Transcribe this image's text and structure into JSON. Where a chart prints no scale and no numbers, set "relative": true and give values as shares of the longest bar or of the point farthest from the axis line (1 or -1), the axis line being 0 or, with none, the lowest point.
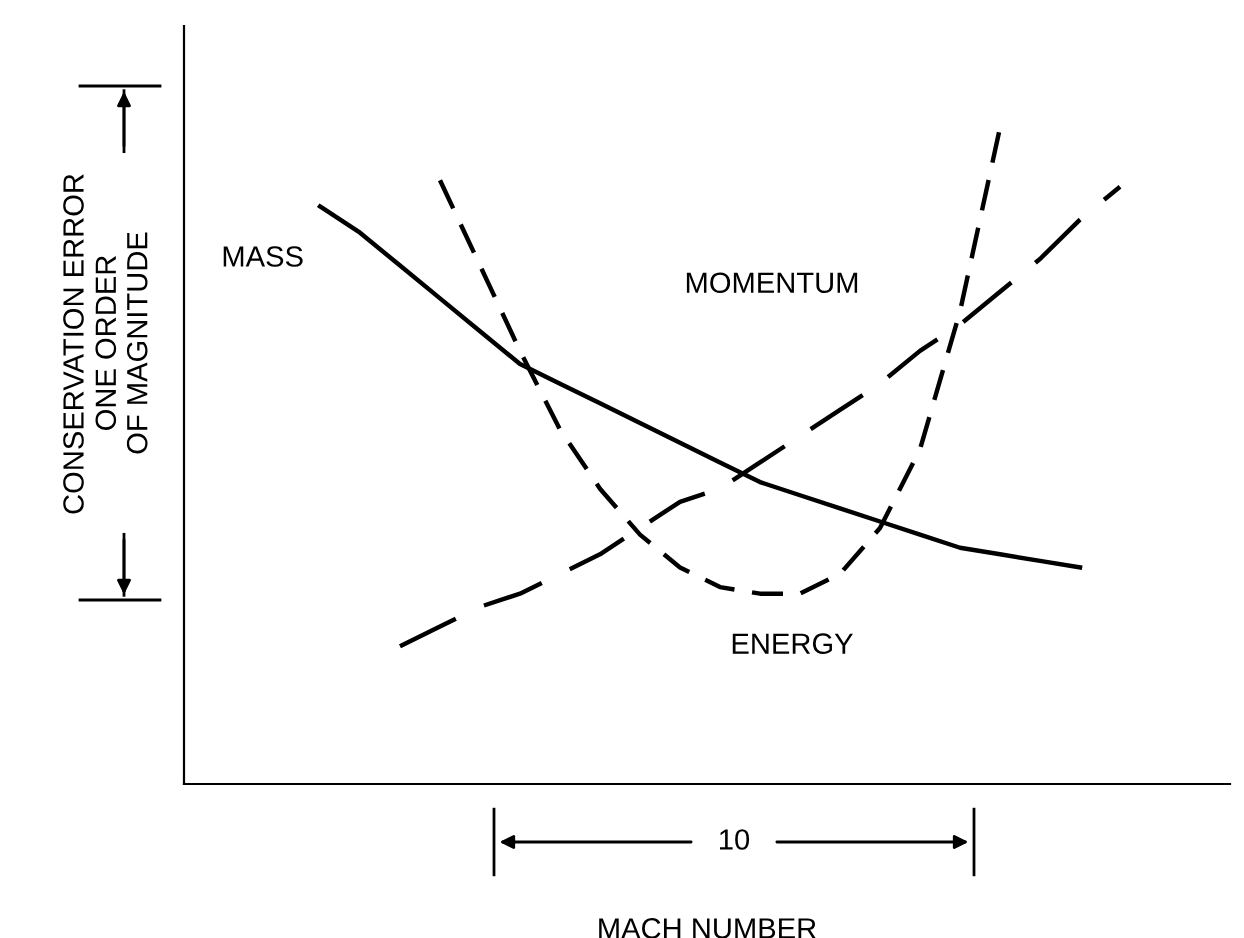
{
  "chart_data": {
    "type": "line",
    "relative": true,
    "tick_labels": false,
    "legend": false,
    "marker": "none",
    "xlabel": "MACH NUMBER",
    "annotations": [
      "CONSERVATION ERROR",
      "ONE ORDER\nOF MAGNITUDE",
      "10"
    ],
    "categories": [
      null,
      null,
      null,
      null,
      null,
      null,
      null,
      null,
      null,
      null,
      null,
      null,
      null,
      null,
      null,
      null,
      null,
      null,
      null,
      null,
      null,
      null
    ],
    "series": [
      {
        "name": "MASS",
        "color": "#000000",
        "line_style": "solid",
        "values": [
          0.88,
          0.84,
          0.79,
          0.74,
          0.69,
          0.64,
          0.61,
          0.58,
          0.55,
          0.52,
          0.49,
          0.46,
          0.44,
          0.42,
          0.4,
          0.38,
          0.36,
          0.35,
          0.34,
          0.33,
          null,
          null
        ]
      },
      {
        "name": "MOMENTUM",
        "color": "#000000",
        "line_style": "dashed",
        "values": [
          null,
          null,
          0.21,
          0.24,
          0.27,
          0.29,
          0.32,
          0.35,
          0.39,
          0.43,
          0.45,
          0.49,
          0.53,
          0.57,
          0.61,
          0.66,
          0.7,
          0.75,
          0.8,
          0.86,
          0.91,
          null
        ]
      },
      {
        "name": "ENERGY",
        "color": "#000000",
        "line_style": "dashed",
        "values": [
          null,
          null,
          null,
          0.92,
          0.79,
          0.66,
          0.54,
          0.45,
          0.38,
          0.33,
          0.3,
          0.29,
          0.29,
          0.32,
          0.39,
          0.51,
          0.72,
          1.0,
          null,
          null,
          null,
          null
        ]
      }
    ]
  }
}
